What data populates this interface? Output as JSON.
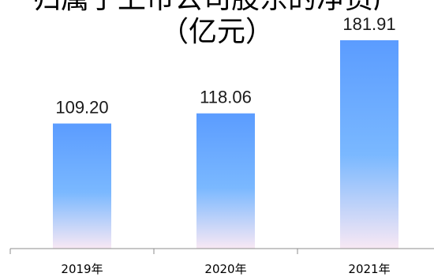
{
  "chart_data": {
    "type": "bar",
    "title": "归属于上市公司股东的净资产",
    "subtitle": "（亿元）",
    "categories": [
      "2019年",
      "2020年",
      "2021年"
    ],
    "values": [
      109.2,
      118.06,
      181.91
    ],
    "value_labels": [
      "109.20",
      "118.06",
      "181.91"
    ],
    "xlabel": "",
    "ylabel": "",
    "ylim": [
      0,
      200
    ],
    "grid": false,
    "legend": "none",
    "colors": {
      "bar_top": "#5b9cff",
      "bar_mid": "#7ab8ff",
      "bar_bottom": "#f8e8f4",
      "axis": "#8c8c8c"
    }
  }
}
